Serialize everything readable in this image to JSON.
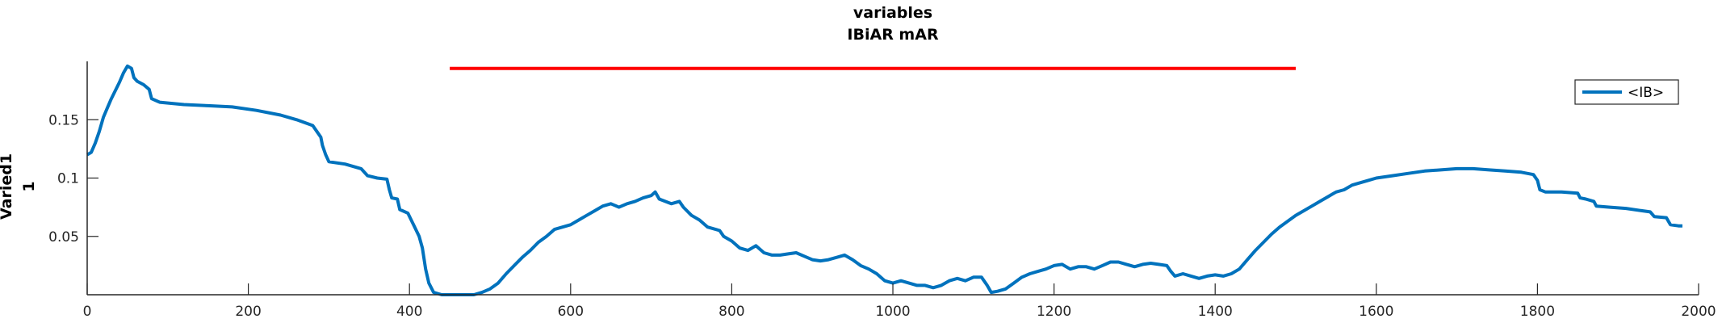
{
  "chart_data": {
    "type": "line",
    "title": [
      "variables",
      "IBiAR mAR"
    ],
    "xlabel": "",
    "ylabel": [
      "Varied1",
      "1"
    ],
    "xlim": [
      0,
      2000
    ],
    "ylim": [
      0,
      0.2
    ],
    "xticks": [
      0,
      200,
      400,
      600,
      800,
      1000,
      1200,
      1400,
      1600,
      1800,
      2000
    ],
    "yticks": [
      0.05,
      0.1,
      0.15
    ],
    "ytick_labels": [
      "0.05",
      "0.1",
      "0.15"
    ],
    "grid": false,
    "legend_position": "top-right",
    "series": [
      {
        "name": "<IB>",
        "color": "#0072BD",
        "points": [
          [
            0,
            0.12
          ],
          [
            5,
            0.122
          ],
          [
            10,
            0.13
          ],
          [
            15,
            0.14
          ],
          [
            20,
            0.152
          ],
          [
            25,
            0.16
          ],
          [
            30,
            0.168
          ],
          [
            35,
            0.175
          ],
          [
            40,
            0.182
          ],
          [
            45,
            0.19
          ],
          [
            50,
            0.196
          ],
          [
            55,
            0.194
          ],
          [
            58,
            0.186
          ],
          [
            62,
            0.183
          ],
          [
            70,
            0.18
          ],
          [
            77,
            0.176
          ],
          [
            80,
            0.168
          ],
          [
            90,
            0.165
          ],
          [
            120,
            0.163
          ],
          [
            150,
            0.162
          ],
          [
            180,
            0.161
          ],
          [
            210,
            0.158
          ],
          [
            240,
            0.154
          ],
          [
            260,
            0.15
          ],
          [
            280,
            0.145
          ],
          [
            285,
            0.14
          ],
          [
            290,
            0.135
          ],
          [
            292,
            0.128
          ],
          [
            296,
            0.12
          ],
          [
            300,
            0.114
          ],
          [
            320,
            0.112
          ],
          [
            340,
            0.108
          ],
          [
            348,
            0.102
          ],
          [
            360,
            0.1
          ],
          [
            372,
            0.099
          ],
          [
            375,
            0.09
          ],
          [
            378,
            0.083
          ],
          [
            385,
            0.082
          ],
          [
            388,
            0.073
          ],
          [
            398,
            0.07
          ],
          [
            405,
            0.06
          ],
          [
            412,
            0.05
          ],
          [
            416,
            0.04
          ],
          [
            420,
            0.022
          ],
          [
            424,
            0.01
          ],
          [
            430,
            0.002
          ],
          [
            440,
            0
          ],
          [
            480,
            0
          ],
          [
            490,
            0.002
          ],
          [
            500,
            0.005
          ],
          [
            510,
            0.01
          ],
          [
            520,
            0.018
          ],
          [
            530,
            0.025
          ],
          [
            540,
            0.032
          ],
          [
            550,
            0.038
          ],
          [
            560,
            0.045
          ],
          [
            570,
            0.05
          ],
          [
            580,
            0.056
          ],
          [
            590,
            0.058
          ],
          [
            600,
            0.06
          ],
          [
            610,
            0.064
          ],
          [
            620,
            0.068
          ],
          [
            630,
            0.072
          ],
          [
            640,
            0.076
          ],
          [
            650,
            0.078
          ],
          [
            660,
            0.075
          ],
          [
            670,
            0.078
          ],
          [
            680,
            0.08
          ],
          [
            690,
            0.083
          ],
          [
            700,
            0.085
          ],
          [
            705,
            0.088
          ],
          [
            710,
            0.082
          ],
          [
            725,
            0.078
          ],
          [
            735,
            0.08
          ],
          [
            740,
            0.075
          ],
          [
            750,
            0.068
          ],
          [
            760,
            0.064
          ],
          [
            770,
            0.058
          ],
          [
            785,
            0.055
          ],
          [
            790,
            0.05
          ],
          [
            800,
            0.046
          ],
          [
            810,
            0.04
          ],
          [
            820,
            0.038
          ],
          [
            830,
            0.042
          ],
          [
            840,
            0.036
          ],
          [
            850,
            0.034
          ],
          [
            860,
            0.034
          ],
          [
            870,
            0.035
          ],
          [
            880,
            0.036
          ],
          [
            890,
            0.033
          ],
          [
            900,
            0.03
          ],
          [
            910,
            0.029
          ],
          [
            920,
            0.03
          ],
          [
            930,
            0.032
          ],
          [
            940,
            0.034
          ],
          [
            950,
            0.03
          ],
          [
            960,
            0.025
          ],
          [
            970,
            0.022
          ],
          [
            980,
            0.018
          ],
          [
            990,
            0.012
          ],
          [
            1000,
            0.01
          ],
          [
            1010,
            0.012
          ],
          [
            1020,
            0.01
          ],
          [
            1030,
            0.008
          ],
          [
            1040,
            0.008
          ],
          [
            1050,
            0.006
          ],
          [
            1060,
            0.008
          ],
          [
            1070,
            0.012
          ],
          [
            1080,
            0.014
          ],
          [
            1090,
            0.012
          ],
          [
            1100,
            0.015
          ],
          [
            1110,
            0.015
          ],
          [
            1117,
            0.008
          ],
          [
            1122,
            0.002
          ],
          [
            1130,
            0.003
          ],
          [
            1140,
            0.005
          ],
          [
            1150,
            0.01
          ],
          [
            1160,
            0.015
          ],
          [
            1170,
            0.018
          ],
          [
            1180,
            0.02
          ],
          [
            1190,
            0.022
          ],
          [
            1200,
            0.025
          ],
          [
            1210,
            0.026
          ],
          [
            1220,
            0.022
          ],
          [
            1230,
            0.024
          ],
          [
            1240,
            0.024
          ],
          [
            1250,
            0.022
          ],
          [
            1260,
            0.025
          ],
          [
            1270,
            0.028
          ],
          [
            1280,
            0.028
          ],
          [
            1290,
            0.026
          ],
          [
            1300,
            0.024
          ],
          [
            1310,
            0.026
          ],
          [
            1320,
            0.027
          ],
          [
            1330,
            0.026
          ],
          [
            1340,
            0.025
          ],
          [
            1345,
            0.02
          ],
          [
            1350,
            0.016
          ],
          [
            1360,
            0.018
          ],
          [
            1370,
            0.016
          ],
          [
            1380,
            0.014
          ],
          [
            1390,
            0.016
          ],
          [
            1400,
            0.017
          ],
          [
            1410,
            0.016
          ],
          [
            1420,
            0.018
          ],
          [
            1430,
            0.022
          ],
          [
            1440,
            0.03
          ],
          [
            1450,
            0.038
          ],
          [
            1460,
            0.045
          ],
          [
            1470,
            0.052
          ],
          [
            1480,
            0.058
          ],
          [
            1490,
            0.063
          ],
          [
            1500,
            0.068
          ],
          [
            1510,
            0.072
          ],
          [
            1520,
            0.076
          ],
          [
            1530,
            0.08
          ],
          [
            1540,
            0.084
          ],
          [
            1550,
            0.088
          ],
          [
            1560,
            0.09
          ],
          [
            1570,
            0.094
          ],
          [
            1580,
            0.096
          ],
          [
            1590,
            0.098
          ],
          [
            1600,
            0.1
          ],
          [
            1620,
            0.102
          ],
          [
            1640,
            0.104
          ],
          [
            1660,
            0.106
          ],
          [
            1680,
            0.107
          ],
          [
            1700,
            0.108
          ],
          [
            1720,
            0.108
          ],
          [
            1740,
            0.107
          ],
          [
            1760,
            0.106
          ],
          [
            1780,
            0.105
          ],
          [
            1795,
            0.103
          ],
          [
            1800,
            0.098
          ],
          [
            1803,
            0.09
          ],
          [
            1810,
            0.088
          ],
          [
            1830,
            0.088
          ],
          [
            1850,
            0.087
          ],
          [
            1853,
            0.083
          ],
          [
            1860,
            0.082
          ],
          [
            1870,
            0.08
          ],
          [
            1873,
            0.076
          ],
          [
            1890,
            0.075
          ],
          [
            1910,
            0.074
          ],
          [
            1930,
            0.072
          ],
          [
            1940,
            0.071
          ],
          [
            1945,
            0.067
          ],
          [
            1960,
            0.066
          ],
          [
            1965,
            0.06
          ],
          [
            1975,
            0.059
          ],
          [
            1980,
            0.059
          ]
        ]
      },
      {
        "name": "",
        "color": "#FF0000",
        "points": [
          [
            450,
            0.194
          ],
          [
            1500,
            0.194
          ]
        ]
      }
    ]
  }
}
